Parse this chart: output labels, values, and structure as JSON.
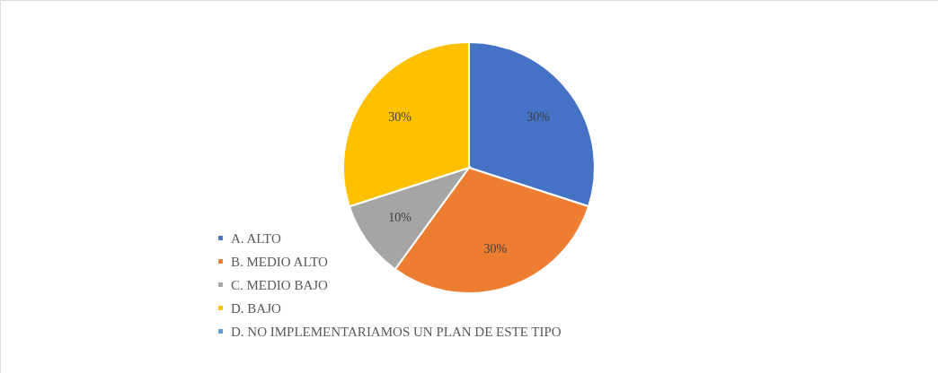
{
  "chart_data": {
    "type": "pie",
    "categories": [
      "A. ALTO",
      "B. MEDIO ALTO",
      "C. MEDIO BAJO",
      "D. BAJO",
      "D. NO IMPLEMENTARIAMOS UN PLAN DE ESTE TIPO"
    ],
    "values": [
      30,
      30,
      10,
      30,
      0
    ],
    "colors": [
      "#4472c4",
      "#ed7d31",
      "#a5a5a5",
      "#ffc000",
      "#5b9bd5"
    ],
    "value_labels": [
      "30%",
      "30%",
      "10%",
      "30%",
      null
    ],
    "legend": "bottom left"
  }
}
